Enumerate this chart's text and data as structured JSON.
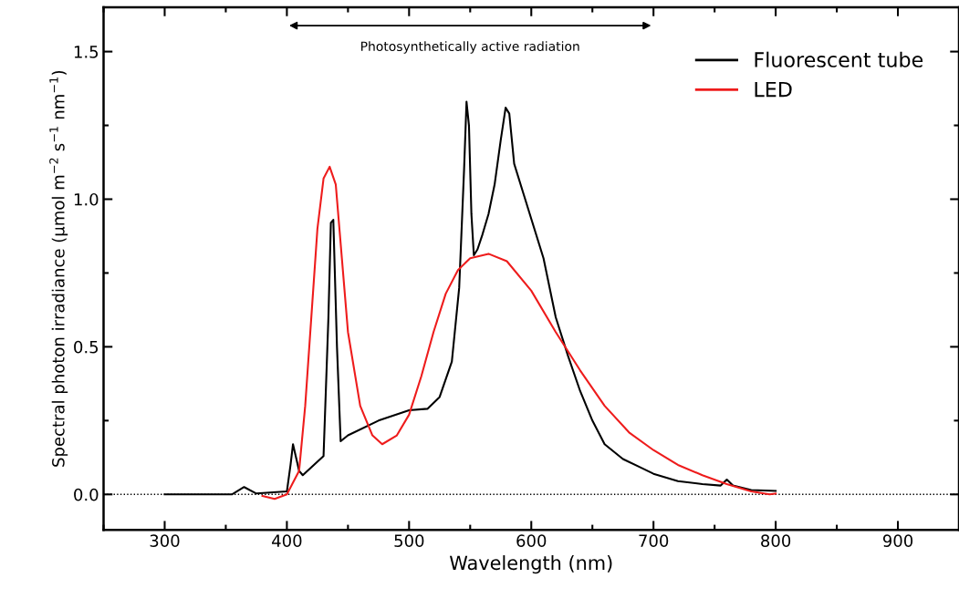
{
  "chart_data": {
    "type": "line",
    "xlabel": "Wavelength (nm)",
    "ylabel": "Spectral photon irradiance (µmol m$^{−2}$ s$^{−1}$ nm$^{−1}$)",
    "xlim": [
      250,
      950
    ],
    "ylim": [
      -0.12,
      1.65
    ],
    "xticks": [
      300,
      400,
      500,
      600,
      700,
      800,
      900
    ],
    "yticks": [
      {
        "value": 0,
        "label": "0.0"
      },
      0.5,
      {
        "value": 1,
        "label": "1.0"
      },
      1.5
    ],
    "legend": "top right",
    "grid": false,
    "line_style": "solid",
    "marker": "none",
    "ref_lines": [
      {
        "axis": "y",
        "value": 0,
        "line_style": "dotted",
        "color": "#000000"
      }
    ],
    "annotations": [
      "Photosynthetically active radiation"
    ],
    "series": [
      {
        "name": "Fluorescent tube",
        "color": "#000000",
        "x": [
          300,
          355,
          365,
          375,
          400,
          403,
          405,
          410,
          413,
          430,
          434,
          436,
          438,
          441,
          444,
          450,
          475,
          500,
          515,
          525,
          535,
          541,
          545,
          547,
          549,
          551,
          553,
          556,
          560,
          565,
          570,
          575,
          579,
          582,
          586,
          595,
          610,
          620,
          630,
          640,
          650,
          660,
          675,
          690,
          700,
          720,
          740,
          755,
          760,
          765,
          780,
          800
        ],
        "values": [
          0,
          0,
          0.025,
          0.003,
          0.01,
          0.1,
          0.17,
          0.08,
          0.065,
          0.13,
          0.6,
          0.92,
          0.93,
          0.5,
          0.18,
          0.2,
          0.25,
          0.285,
          0.29,
          0.33,
          0.45,
          0.7,
          1.1,
          1.33,
          1.25,
          0.95,
          0.81,
          0.83,
          0.88,
          0.95,
          1.05,
          1.2,
          1.31,
          1.29,
          1.12,
          1.0,
          0.8,
          0.6,
          0.47,
          0.35,
          0.25,
          0.17,
          0.12,
          0.09,
          0.07,
          0.045,
          0.035,
          0.03,
          0.05,
          0.03,
          0.015,
          0.012
        ]
      },
      {
        "name": "LED",
        "color": "#ee1c1c",
        "x": [
          380,
          390,
          400,
          410,
          415,
          420,
          425,
          430,
          435,
          440,
          445,
          450,
          460,
          470,
          478,
          490,
          500,
          510,
          520,
          530,
          540,
          550,
          565,
          580,
          600,
          620,
          640,
          660,
          680,
          700,
          720,
          740,
          760,
          780,
          795,
          800
        ],
        "values": [
          -0.005,
          -0.015,
          0,
          0.08,
          0.3,
          0.6,
          0.9,
          1.07,
          1.11,
          1.05,
          0.8,
          0.55,
          0.3,
          0.2,
          0.17,
          0.2,
          0.27,
          0.4,
          0.55,
          0.68,
          0.76,
          0.8,
          0.815,
          0.79,
          0.69,
          0.55,
          0.42,
          0.3,
          0.21,
          0.15,
          0.1,
          0.065,
          0.035,
          0.01,
          0.0,
          0.003
        ]
      }
    ]
  }
}
